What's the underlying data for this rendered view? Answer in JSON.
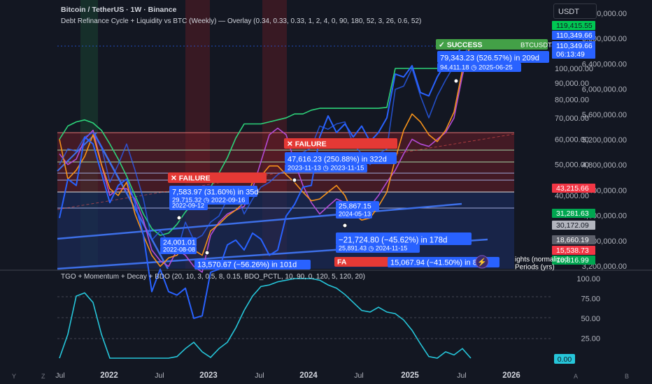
{
  "header": {
    "symbol_title": "Bitcoin / TetherUS · 1W · Binance",
    "overlay_title": "Debt Refinance Cycle + Liquidity vs BTC (Weekly) — Overlay (0.34, 0.33, 0.33, 1, 2, 4, 0, 90, 180, 52, 3, 26, 0.6, 52)",
    "oscillator_title": "TGO + Momentum + Decay + BDO (20, 10, 3, 0.5, 8, 0.15, BDO_PCTL, 10, 90, 0, 120, 5, 120, 20)"
  },
  "currency_button": "USDT",
  "bottom_bar": {
    "left_buttons": [
      "Y",
      "Z"
    ],
    "right_buttons": [
      "A",
      "B"
    ]
  },
  "colors": {
    "background": "#131722",
    "btc_line": "#2962ff",
    "liquidity_line": "#2dd37a",
    "orange_line": "#f7931a",
    "purple_line": "#b24bd6",
    "oscillator_line": "#26c6da",
    "failure_red": "#e53935",
    "success_green": "#43a047",
    "badge_blue": "#2962ff"
  },
  "chart_data": [
    {
      "type": "line",
      "title": "Bitcoin / TetherUS · 1W · Binance",
      "scale": "log",
      "right_axis_ticks": [
        "7,200,000.00",
        "6,800,000.00",
        "6,400,000.00",
        "6,000,000.00",
        "5,600,000.00",
        "5,200,000.00",
        "4,800,000.00",
        "4,400,000.00",
        "4,000,000.00",
        "3,600,000.00",
        "3,200,000.00"
      ],
      "inner_axis_ticks": [
        "100,000.00",
        "90,000.00",
        "80,000.00",
        "70,000.00",
        "60,000.00",
        "50,000.00",
        "40,000.00"
      ],
      "x_ticks": [
        "Jul",
        "2022",
        "Jul",
        "2023",
        "Jul",
        "2024",
        "Jul",
        "2025",
        "Jul",
        "2026"
      ],
      "series": [
        {
          "key": "btc",
          "x": [
            "2021-07",
            "2021-08",
            "2021-09",
            "2021-10",
            "2021-11",
            "2021-12",
            "2022-01",
            "2022-02",
            "2022-03",
            "2022-04",
            "2022-05",
            "2022-06",
            "2022-07",
            "2022-08",
            "2022-09",
            "2022-10",
            "2022-11",
            "2022-12",
            "2023-01",
            "2023-02",
            "2023-03",
            "2023-04",
            "2023-05",
            "2023-06",
            "2023-07",
            "2023-08",
            "2023-09",
            "2023-10",
            "2023-11",
            "2023-12",
            "2024-01",
            "2024-02",
            "2024-03",
            "2024-04",
            "2024-05",
            "2024-06",
            "2024-07",
            "2024-08",
            "2024-09",
            "2024-10",
            "2024-11",
            "2024-12",
            "2025-01",
            "2025-02",
            "2025-03",
            "2025-04",
            "2025-05",
            "2025-06",
            "2025-07",
            "2025-08"
          ],
          "y": [
            34000,
            45000,
            43000,
            61000,
            58000,
            47000,
            38000,
            43000,
            45000,
            38000,
            30000,
            20000,
            23500,
            20000,
            19500,
            20500,
            16500,
            16800,
            23000,
            23500,
            28000,
            29000,
            27000,
            30500,
            29200,
            26000,
            27000,
            34500,
            37500,
            42500,
            43000,
            61000,
            71000,
            63000,
            67000,
            61000,
            66000,
            59000,
            63000,
            70000,
            96000,
            94000,
            102000,
            84000,
            82000,
            94000,
            104000,
            107000,
            118000,
            117000
          ]
        },
        {
          "key": "liquidity",
          "y": [
            60000,
            66000,
            68000,
            69000,
            67500,
            64000,
            58000,
            52000,
            46000,
            40000,
            35000,
            31500,
            30000,
            30500,
            32500,
            35500,
            38000,
            40000,
            42500,
            47000,
            52500,
            60500,
            67000,
            67000,
            67000,
            68000,
            69000,
            70000,
            72000,
            72000,
            74000,
            75000,
            75000,
            75000,
            75000,
            75000,
            75000,
            75000,
            75000,
            75500,
            100000,
            100000,
            100000,
            100000,
            100000,
            100000,
            100000,
            100000,
            100000,
            100000
          ]
        },
        {
          "key": "orange",
          "y": [
            60000,
            45000,
            48000,
            53000,
            62000,
            50000,
            42000,
            40000,
            44000,
            35000,
            30000,
            26000,
            24000,
            25500,
            26000,
            28000,
            27000,
            26000,
            31000,
            32500,
            34500,
            36000,
            38000,
            44000,
            46000,
            49500,
            49500,
            46500,
            44000,
            41000,
            38500,
            39000,
            41000,
            43000,
            40000,
            35000,
            33500,
            34000,
            37000,
            41000,
            52000,
            64000,
            72000,
            68000,
            62000,
            59000,
            64000,
            73000,
            99000,
            120000
          ]
        },
        {
          "key": "purple",
          "y": [
            54000,
            50000,
            52000,
            60000,
            64000,
            50000,
            40000,
            42000,
            42000,
            39000,
            33500,
            27000,
            25000,
            24000,
            27000,
            26000,
            24000,
            23000,
            30000,
            33000,
            35000,
            36000,
            37000,
            42000,
            51000,
            62000,
            65000,
            62000,
            51000,
            43000,
            38000,
            35000,
            37000,
            39000,
            38000,
            35000,
            36000,
            37000,
            40000,
            44000,
            48000,
            54000,
            60000,
            58000,
            57000,
            60000,
            63000,
            70000,
            95000,
            120000
          ]
        },
        {
          "key": "btc_overlay",
          "y": [
            50000,
            56000,
            55000,
            61000,
            63000,
            57000,
            44000,
            50000,
            58000,
            48000,
            39000,
            29000,
            31000,
            28500,
            26500,
            33000,
            29000,
            30000,
            33000,
            34500,
            39000,
            41000,
            35000,
            39000,
            42500,
            44000,
            46500,
            48000,
            50500,
            54500,
            56500,
            66000,
            64500,
            67000,
            68000,
            58000,
            54000,
            50000,
            54000,
            56000,
            86000,
            88000,
            100000,
            82000,
            70000,
            82000,
            92000,
            102000,
            110000,
            118000
          ]
        }
      ],
      "price_labels": [
        "119,415.55",
        "110,349.66",
        "110,349.66",
        "06:13:49",
        "43,215.66",
        "31,281.63",
        "30,172.09",
        "18,660.19",
        "15,538.73",
        "10,816.99"
      ],
      "annotations": [
        {
          "kind": "success",
          "text": "✓ SUCCESS"
        },
        {
          "kind": "symbol",
          "text": "BTCUSDT"
        },
        {
          "kind": "badge",
          "text": "79,343.23 (526.57%) in 209d"
        },
        {
          "kind": "badge",
          "text": "94,411.18 ◷ 2025-06-25"
        },
        {
          "kind": "failure",
          "text": "✕ FAILURE"
        },
        {
          "kind": "badge",
          "text": "47,616.23 (250.88%) in 322d"
        },
        {
          "kind": "badge",
          "text": "2023-11-13 ◷ 2023-11-15"
        },
        {
          "kind": "failure",
          "text": "✕ FAILURE"
        },
        {
          "kind": "badge",
          "text": "7,583.97 (31.60%) in 35d"
        },
        {
          "kind": "badge",
          "text": "29,715.32 ◷ 2022-09-16"
        },
        {
          "kind": "badge",
          "text": "2022-09-12"
        },
        {
          "kind": "badge",
          "text": "25,867.15"
        },
        {
          "kind": "badge",
          "text": "2024-05-13"
        },
        {
          "kind": "badge",
          "text": "24,001.01"
        },
        {
          "kind": "badge",
          "text": "2022-08-08"
        },
        {
          "kind": "badge",
          "text": "−21,724.80 (−45.62%) in 178d"
        },
        {
          "kind": "badge",
          "text": "25,891.43 ◷ 2024-11-15"
        },
        {
          "kind": "badge",
          "text": "13,570.67 (−56.26%) in 101d"
        },
        {
          "kind": "failure",
          "text": "FA"
        },
        {
          "kind": "badge",
          "text": "15,067.94 (−41.50%) in 84d"
        },
        {
          "kind": "legend",
          "text": "ights (normalized"
        },
        {
          "kind": "legend",
          "text": "Periods (yrs)"
        }
      ]
    },
    {
      "type": "line",
      "title": "TGO + Momentum + Decay + BDO (20, 10, 3, 0.5, 8, 0.15, BDO_PCTL, 10, 90, 0, 120, 5, 120, 20)",
      "ylim": [
        0,
        100
      ],
      "yticks": [
        "100.00",
        "75.00",
        "50.00",
        "25.00"
      ],
      "last_value": "0.00",
      "series": [
        {
          "key": "oscillator",
          "x": [
            "2021-07",
            "2021-08",
            "2021-09",
            "2021-10",
            "2021-11",
            "2021-12",
            "2022-01",
            "2022-02",
            "2022-03",
            "2022-04",
            "2022-05",
            "2022-06",
            "2022-07",
            "2022-08",
            "2022-09",
            "2022-10",
            "2022-11",
            "2022-12",
            "2023-01",
            "2023-02",
            "2023-03",
            "2023-04",
            "2023-05",
            "2023-06",
            "2023-07",
            "2023-08",
            "2023-09",
            "2023-10",
            "2023-11",
            "2023-12",
            "2024-01",
            "2024-02",
            "2024-03",
            "2024-04",
            "2024-05",
            "2024-06",
            "2024-07",
            "2024-08",
            "2024-09",
            "2024-10",
            "2024-11",
            "2024-12",
            "2025-01",
            "2025-02",
            "2025-03",
            "2025-04",
            "2025-05",
            "2025-06",
            "2025-07",
            "2025-08"
          ],
          "y": [
            0,
            30,
            78,
            82,
            70,
            30,
            0,
            0,
            0,
            0,
            0,
            0,
            0,
            0,
            2,
            12,
            20,
            8,
            1,
            12,
            20,
            38,
            60,
            78,
            90,
            92,
            96,
            98,
            100,
            100,
            100,
            98,
            92,
            88,
            80,
            70,
            60,
            58,
            64,
            58,
            56,
            48,
            35,
            18,
            2,
            0,
            8,
            4,
            12,
            0
          ]
        }
      ]
    }
  ]
}
